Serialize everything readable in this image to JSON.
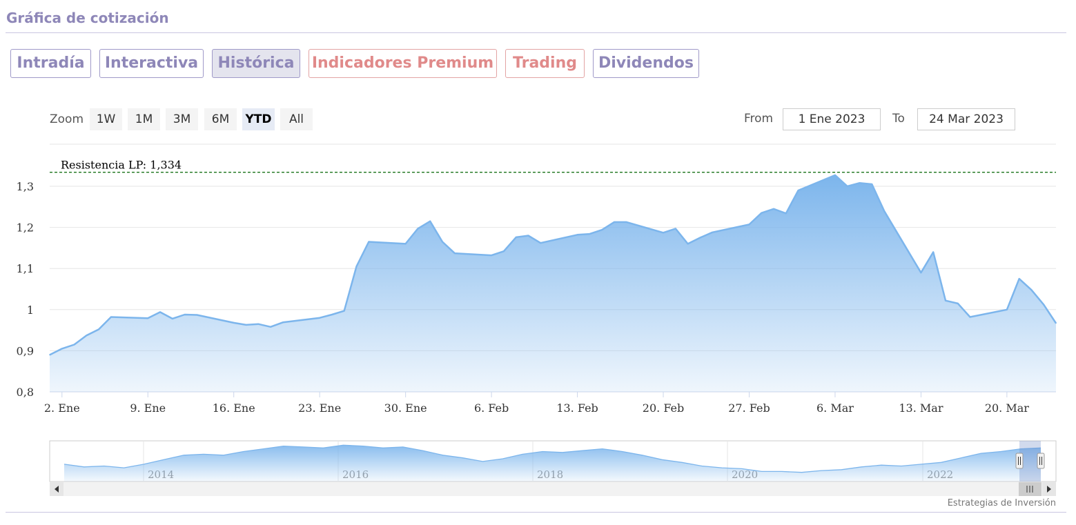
{
  "section_title": "Gráfica de cotización",
  "tabs": [
    {
      "label": "Intradía",
      "style": "normal"
    },
    {
      "label": "Interactiva",
      "style": "normal"
    },
    {
      "label": "Histórica",
      "style": "active"
    },
    {
      "label": "Indicadores Premium",
      "style": "premium"
    },
    {
      "label": "Trading",
      "style": "premium"
    },
    {
      "label": "Dividendos",
      "style": "normal"
    }
  ],
  "range_selector": {
    "zoom_label": "Zoom",
    "buttons": [
      "1W",
      "1M",
      "3M",
      "6M",
      "YTD",
      "All"
    ],
    "selected": "YTD",
    "from_label": "From",
    "from_value": "1 Ene 2023",
    "to_label": "To",
    "to_value": "24 Mar 2023"
  },
  "credit": "Estrategias de Inversión",
  "colors": {
    "accent": "#8e87b8",
    "premium": "#e08a8a",
    "series": "#7cb5ec",
    "resistance": "#006400"
  },
  "chart_data": {
    "type": "area",
    "title": "",
    "xlabel": "",
    "ylabel": "",
    "ylim": [
      0.8,
      1.35
    ],
    "grid": true,
    "y_ticks": [
      0.8,
      0.9,
      1.0,
      1.1,
      1.2,
      1.3
    ],
    "y_tick_labels": [
      "0,8",
      "0,9",
      "1",
      "1,1",
      "1,2",
      "1,3"
    ],
    "x_ticks": [
      {
        "date": "2023-01-02",
        "label": "2. Ene"
      },
      {
        "date": "2023-01-09",
        "label": "9. Ene"
      },
      {
        "date": "2023-01-16",
        "label": "16. Ene"
      },
      {
        "date": "2023-01-23",
        "label": "23. Ene"
      },
      {
        "date": "2023-01-30",
        "label": "30. Ene"
      },
      {
        "date": "2023-02-06",
        "label": "6. Feb"
      },
      {
        "date": "2023-02-13",
        "label": "13. Feb"
      },
      {
        "date": "2023-02-20",
        "label": "20. Feb"
      },
      {
        "date": "2023-02-27",
        "label": "27. Feb"
      },
      {
        "date": "2023-03-06",
        "label": "6. Mar"
      },
      {
        "date": "2023-03-13",
        "label": "13. Mar"
      },
      {
        "date": "2023-03-20",
        "label": "20. Mar"
      }
    ],
    "x_range": [
      "2023-01-01",
      "2023-03-24"
    ],
    "plot_lines": [
      {
        "value": 1.334,
        "label": "Resistencia LP: 1,334",
        "style": "dashed"
      }
    ],
    "series": [
      {
        "values": [
          [
            "2023-01-01",
            0.89
          ],
          [
            "2023-01-02",
            0.905
          ],
          [
            "2023-01-03",
            0.915
          ],
          [
            "2023-01-04",
            0.937
          ],
          [
            "2023-01-05",
            0.952
          ],
          [
            "2023-01-06",
            0.982
          ],
          [
            "2023-01-09",
            0.979
          ],
          [
            "2023-01-10",
            0.994
          ],
          [
            "2023-01-11",
            0.978
          ],
          [
            "2023-01-12",
            0.988
          ],
          [
            "2023-01-13",
            0.987
          ],
          [
            "2023-01-16",
            0.968
          ],
          [
            "2023-01-17",
            0.963
          ],
          [
            "2023-01-18",
            0.965
          ],
          [
            "2023-01-19",
            0.958
          ],
          [
            "2023-01-20",
            0.969
          ],
          [
            "2023-01-23",
            0.98
          ],
          [
            "2023-01-24",
            0.988
          ],
          [
            "2023-01-25",
            0.997
          ],
          [
            "2023-01-26",
            1.105
          ],
          [
            "2023-01-27",
            1.165
          ],
          [
            "2023-01-30",
            1.16
          ],
          [
            "2023-01-31",
            1.197
          ],
          [
            "2023-02-01",
            1.215
          ],
          [
            "2023-02-02",
            1.165
          ],
          [
            "2023-02-03",
            1.137
          ],
          [
            "2023-02-06",
            1.132
          ],
          [
            "2023-02-07",
            1.142
          ],
          [
            "2023-02-08",
            1.176
          ],
          [
            "2023-02-09",
            1.18
          ],
          [
            "2023-02-10",
            1.162
          ],
          [
            "2023-02-13",
            1.182
          ],
          [
            "2023-02-14",
            1.184
          ],
          [
            "2023-02-15",
            1.194
          ],
          [
            "2023-02-16",
            1.213
          ],
          [
            "2023-02-17",
            1.213
          ],
          [
            "2023-02-20",
            1.187
          ],
          [
            "2023-02-21",
            1.197
          ],
          [
            "2023-02-22",
            1.16
          ],
          [
            "2023-02-23",
            1.175
          ],
          [
            "2023-02-24",
            1.188
          ],
          [
            "2023-02-27",
            1.207
          ],
          [
            "2023-02-28",
            1.235
          ],
          [
            "2023-03-01",
            1.245
          ],
          [
            "2023-03-02",
            1.234
          ],
          [
            "2023-03-03",
            1.29
          ],
          [
            "2023-03-06",
            1.327
          ],
          [
            "2023-03-07",
            1.3
          ],
          [
            "2023-03-08",
            1.308
          ],
          [
            "2023-03-09",
            1.305
          ],
          [
            "2023-03-10",
            1.24
          ],
          [
            "2023-03-13",
            1.09
          ],
          [
            "2023-03-14",
            1.14
          ],
          [
            "2023-03-15",
            1.022
          ],
          [
            "2023-03-16",
            1.015
          ],
          [
            "2023-03-17",
            0.982
          ],
          [
            "2023-03-20",
            1.0
          ],
          [
            "2023-03-21",
            1.075
          ],
          [
            "2023-03-22",
            1.048
          ],
          [
            "2023-03-23",
            1.012
          ],
          [
            "2023-03-24",
            0.967
          ]
        ]
      }
    ],
    "navigator": {
      "year_labels": [
        "2014",
        "2016",
        "2018",
        "2020",
        "2022"
      ],
      "values": [
        0.88,
        0.85,
        0.86,
        0.84,
        0.88,
        0.93,
        0.98,
        0.99,
        0.98,
        1.02,
        1.05,
        1.08,
        1.07,
        1.06,
        1.09,
        1.08,
        1.06,
        1.07,
        1.03,
        0.98,
        0.95,
        0.91,
        0.94,
        0.99,
        1.02,
        1.01,
        1.03,
        1.05,
        1.02,
        0.98,
        0.93,
        0.9,
        0.86,
        0.84,
        0.83,
        0.8,
        0.8,
        0.79,
        0.81,
        0.82,
        0.85,
        0.87,
        0.86,
        0.88,
        0.9,
        0.95,
        1.0,
        1.02,
        1.05,
        1.06
      ]
    }
  }
}
